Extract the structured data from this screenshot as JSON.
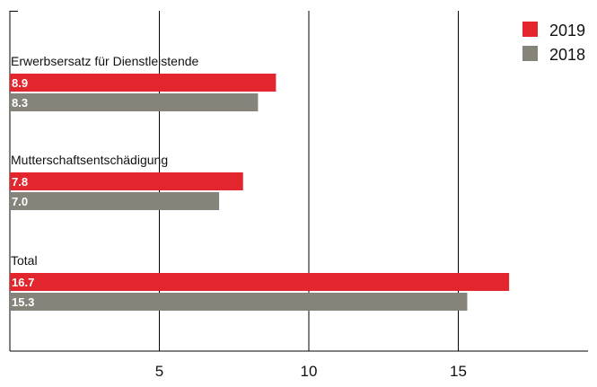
{
  "chart_data": {
    "type": "bar",
    "orientation": "horizontal",
    "title": "",
    "xlabel": "",
    "ylabel": "",
    "categories": [
      "Erwerbsersatz für Dienstleistende",
      "Mutterschaftsentschädigung",
      "Total"
    ],
    "series": [
      {
        "name": "2019",
        "color": "#e3262e",
        "values": [
          8.9,
          7.8,
          16.7
        ],
        "labels": [
          "8.9",
          "7.8",
          "16.7"
        ]
      },
      {
        "name": "2018",
        "color": "#85837a",
        "values": [
          8.3,
          7.0,
          15.3
        ],
        "labels": [
          "8.3",
          "7.0",
          "15.3"
        ]
      }
    ],
    "xlim": [
      0,
      19.5
    ],
    "xticks": [
      5,
      10,
      15
    ],
    "xtick_labels": [
      "5",
      "10",
      "15"
    ],
    "grid": true,
    "legend_position": "top-right"
  }
}
